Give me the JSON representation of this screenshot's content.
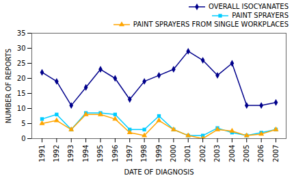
{
  "chart_data": {
    "type": "line",
    "x": [
      1991,
      1992,
      1993,
      1994,
      1995,
      1996,
      1997,
      1998,
      1999,
      2000,
      2001,
      2002,
      2003,
      2004,
      2005,
      2006,
      2007
    ],
    "series": [
      {
        "name": "OVERALL ISOCYANATES",
        "color": "#00008B",
        "marker": "diamond",
        "values": [
          22,
          19,
          11,
          17,
          23,
          20,
          13,
          19,
          21,
          23,
          29,
          26,
          21,
          25,
          11,
          11,
          12
        ]
      },
      {
        "name": "PAINT SPRAYERS",
        "color": "#00CCFF",
        "marker": "square",
        "values": [
          6.5,
          8,
          3,
          8.5,
          8.5,
          8,
          3,
          3,
          7.5,
          3,
          1,
          1,
          3.5,
          2,
          1,
          2,
          3
        ]
      },
      {
        "name": "PAINT SPRAYERS FROM SINGLE WORKPLACES",
        "color": "#FFA500",
        "marker": "triangle",
        "values": [
          5,
          6,
          3,
          8,
          8,
          6.5,
          2,
          1,
          6,
          3,
          1,
          0,
          3,
          2.5,
          1,
          1.5,
          3
        ]
      }
    ],
    "xlabel": "DATE OF DIAGNOSIS",
    "ylabel": "NUMBER OF REPORTS",
    "xlim": [
      1990.3,
      2007.7
    ],
    "xticks": [
      1991,
      1992,
      1993,
      1994,
      1995,
      1996,
      1997,
      1998,
      1999,
      2000,
      2001,
      2002,
      2003,
      2004,
      2005,
      2006,
      2007
    ],
    "ylim": [
      0,
      35
    ],
    "yticks": [
      0,
      5,
      10,
      15,
      20,
      25,
      30,
      35
    ],
    "grid": false,
    "legend": "upper right"
  }
}
